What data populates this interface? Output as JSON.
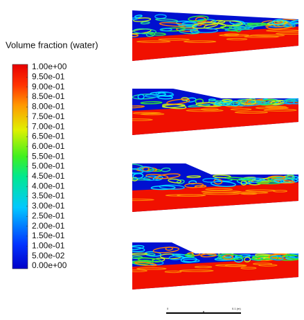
{
  "legend": {
    "title": "Volume fraction (water)",
    "ticks": [
      "1.00e+00",
      "9.50e-01",
      "9.00e-01",
      "8.50e-01",
      "8.00e-01",
      "7.50e-01",
      "7.00e-01",
      "6.50e-01",
      "6.00e-01",
      "5.50e-01",
      "5.00e-01",
      "4.50e-01",
      "4.00e-01",
      "3.50e-01",
      "3.00e-01",
      "2.50e-01",
      "2.00e-01",
      "1.50e-01",
      "1.00e-01",
      "5.00e-02",
      "0.00e+00"
    ]
  },
  "scale_bar": {
    "labels": [
      "0",
      "0.1 (m)"
    ]
  }
}
